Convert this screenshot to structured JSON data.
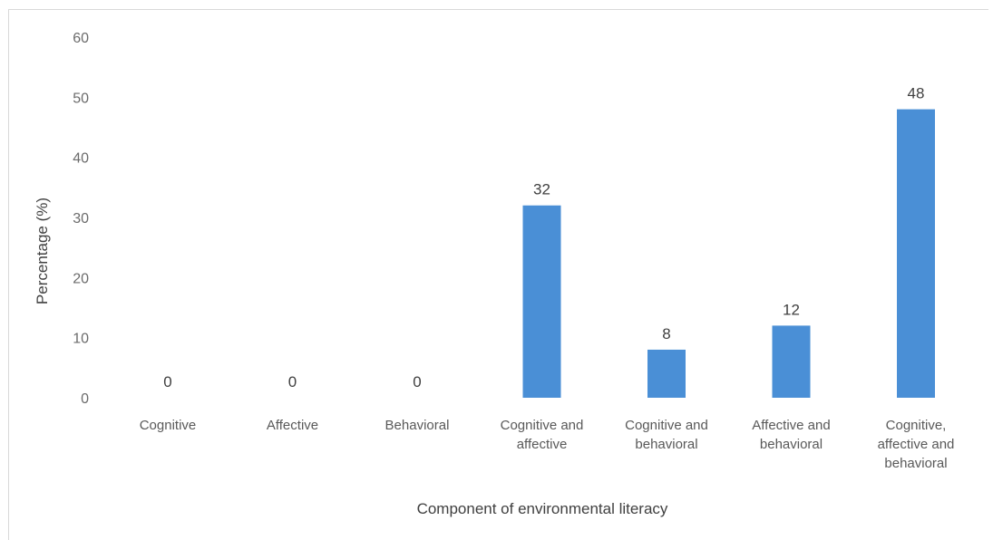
{
  "chart_data": {
    "type": "bar",
    "categories": [
      [
        "Cognitive"
      ],
      [
        "Affective"
      ],
      [
        "Behavioral"
      ],
      [
        "Cognitive and",
        "affective"
      ],
      [
        "Cognitive and",
        "behavioral"
      ],
      [
        "Affective and",
        "behavioral"
      ],
      [
        "Cognitive,",
        "affective and",
        "behavioral"
      ]
    ],
    "values": [
      0,
      0,
      0,
      32,
      8,
      12,
      48
    ],
    "data_labels": [
      "0",
      "0",
      "0",
      "32",
      "8",
      "12",
      "48"
    ],
    "title": "",
    "xlabel": "Component of environmental literacy",
    "ylabel": "Percentage (%)",
    "ylim": [
      0,
      60
    ],
    "yticks": [
      0,
      10,
      20,
      30,
      40,
      50,
      60
    ],
    "grid": false,
    "legend": "none",
    "bar_color": "#4a8fd6"
  }
}
